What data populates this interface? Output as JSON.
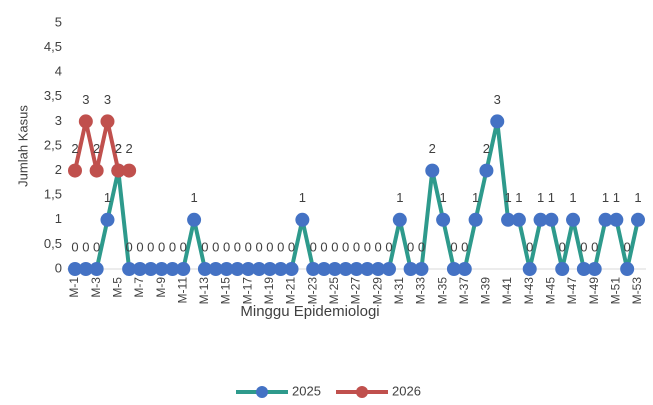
{
  "chart_data": {
    "type": "line",
    "y_label": "Jumlah Kasus",
    "x_label": "Minggu Epidemiologi",
    "categories": [
      "M-1",
      null,
      "M-3",
      null,
      "M-5",
      null,
      "M-7",
      null,
      "M-9",
      null,
      "M-11",
      null,
      "M-13",
      null,
      "M-15",
      null,
      "M-17",
      null,
      "M-19",
      null,
      "M-21",
      null,
      "M-23",
      null,
      "M-25",
      null,
      "M-27",
      null,
      "M-29",
      null,
      "M-31",
      null,
      "M-33",
      null,
      "M-35",
      null,
      "M-37",
      null,
      "M-39",
      null,
      "M-41",
      null,
      "M-43",
      null,
      "M-45",
      null,
      "M-47",
      null,
      "M-49",
      null,
      "M-51",
      null,
      "M-53"
    ],
    "series": [
      {
        "name": "2025",
        "color": "#2e9a8c",
        "marker_color": "#4472c4",
        "values": [
          0,
          0,
          0,
          1,
          2,
          0,
          0,
          0,
          0,
          0,
          0,
          1,
          0,
          0,
          0,
          0,
          0,
          0,
          0,
          0,
          0,
          1,
          0,
          0,
          0,
          0,
          0,
          0,
          0,
          0,
          1,
          0,
          0,
          2,
          1,
          0,
          0,
          1,
          2,
          3,
          1,
          1,
          0,
          1,
          1,
          0,
          1,
          0,
          0,
          1,
          1,
          0,
          1
        ]
      },
      {
        "name": "2026",
        "color": "#c0504d",
        "marker_color": "#c0504d",
        "values": [
          2,
          3,
          2,
          3,
          2,
          2,
          null,
          null,
          null,
          null,
          null,
          null,
          null,
          null,
          null,
          null,
          null,
          null,
          null,
          null,
          null,
          null,
          null,
          null,
          null,
          null,
          null,
          null,
          null,
          null,
          null,
          null,
          null,
          null,
          null,
          null,
          null,
          null,
          null,
          null,
          null,
          null,
          null,
          null,
          null,
          null,
          null,
          null,
          null,
          null,
          null,
          null,
          null
        ]
      }
    ],
    "ylim": [
      0,
      5
    ],
    "yticks": [
      0,
      {
        "value": 0.5,
        "label": "0,5"
      },
      1,
      {
        "value": 1.5,
        "label": "1,5"
      },
      2,
      {
        "value": 2.5,
        "label": "2,5"
      },
      3,
      {
        "value": 3.5,
        "label": "3,5"
      },
      4,
      {
        "value": 4.5,
        "label": "4,5"
      },
      5
    ],
    "grid": false,
    "legend": "bottom"
  }
}
